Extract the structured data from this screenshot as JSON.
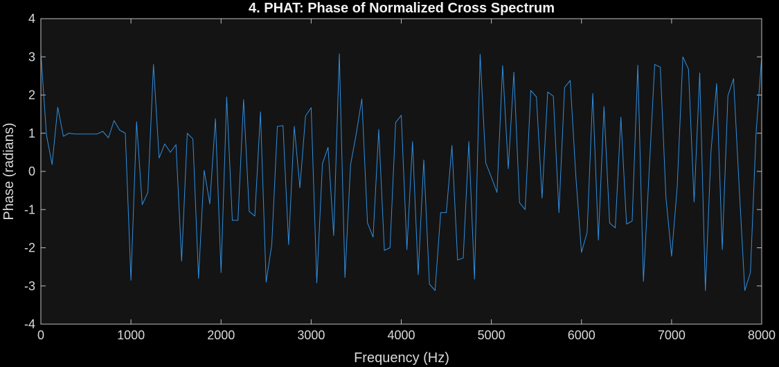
{
  "chart_data": {
    "type": "line",
    "title": "4. PHAT: Phase of Normalized Cross Spectrum",
    "xlabel": "Frequency (Hz)",
    "ylabel": "Phase (radians)",
    "xlim": [
      0,
      8000
    ],
    "ylim": [
      -4,
      4
    ],
    "xticks": [
      0,
      1000,
      2000,
      3000,
      4000,
      5000,
      6000,
      7000,
      8000
    ],
    "yticks": [
      -4,
      -3,
      -2,
      -1,
      0,
      1,
      2,
      3,
      4
    ],
    "grid": false,
    "colors": {
      "figure_background": "#000000",
      "axes_background": "#141414",
      "axes_edge": "#bfbfbf",
      "text": "#d9d9d9",
      "line": "#2f8fe0"
    },
    "series": [
      {
        "x": [
          0,
          62.5,
          125,
          187.5,
          250,
          312.5,
          375,
          437.5,
          500,
          562.5,
          625,
          687.5,
          750,
          812.5,
          875,
          937.5,
          1000,
          1062.5,
          1125,
          1187.5,
          1250,
          1312.5,
          1375,
          1437.5,
          1500,
          1562.5,
          1625,
          1687.5,
          1750,
          1812.5,
          1875,
          1937.5,
          2000,
          2062.5,
          2125,
          2187.5,
          2250,
          2312.5,
          2375,
          2437.5,
          2500,
          2562.5,
          2625,
          2687.5,
          2750,
          2812.5,
          2875,
          2937.5,
          3000,
          3062.5,
          3125,
          3187.5,
          3250,
          3312.5,
          3375,
          3437.5,
          3500,
          3562.5,
          3625,
          3687.5,
          3750,
          3812.5,
          3875,
          3937.5,
          4000,
          4062.5,
          4125,
          4187.5,
          4250,
          4312.5,
          4375,
          4437.5,
          4500,
          4562.5,
          4625,
          4687.5,
          4750,
          4812.5,
          4875,
          4937.5,
          5000,
          5062.5,
          5125,
          5187.5,
          5250,
          5312.5,
          5375,
          5437.5,
          5500,
          5562.5,
          5625,
          5687.5,
          5750,
          5812.5,
          5875,
          5937.5,
          6000,
          6062.5,
          6125,
          6187.5,
          6250,
          6312.5,
          6375,
          6437.5,
          6500,
          6562.5,
          6625,
          6687.5,
          6750,
          6812.5,
          6875,
          6937.5,
          7000,
          7062.5,
          7125,
          7187.5,
          7250,
          7312.5,
          7375,
          7437.5,
          7500,
          7562.5,
          7625,
          7687.5,
          7750,
          7812.5,
          7875,
          7937.5,
          8000
        ],
        "y": [
          3.1,
          0.95,
          0.18,
          1.68,
          0.92,
          1.0,
          0.98,
          0.98,
          0.98,
          0.98,
          0.98,
          1.05,
          0.88,
          1.33,
          1.08,
          1.0,
          -2.85,
          1.3,
          -0.87,
          -0.55,
          2.8,
          0.35,
          0.72,
          0.5,
          0.7,
          -2.35,
          1.0,
          0.85,
          -2.8,
          0.03,
          -0.85,
          1.38,
          -2.65,
          1.95,
          -1.28,
          -1.28,
          1.88,
          -1.05,
          -1.17,
          1.56,
          -2.9,
          -1.92,
          1.18,
          1.2,
          -1.92,
          1.18,
          -0.43,
          1.45,
          1.67,
          -2.92,
          0.2,
          0.63,
          -1.68,
          3.08,
          -2.78,
          0.18,
          0.98,
          1.9,
          -1.35,
          -1.72,
          1.1,
          -2.07,
          -2.0,
          1.28,
          1.47,
          -2.05,
          0.78,
          -2.7,
          0.3,
          -2.95,
          -3.12,
          -1.08,
          -1.08,
          0.68,
          -2.32,
          -2.27,
          0.78,
          -2.82,
          3.07,
          0.22,
          -0.15,
          -0.55,
          2.77,
          0.07,
          2.6,
          -0.82,
          -1.0,
          2.12,
          1.95,
          -0.7,
          2.08,
          1.97,
          -1.08,
          2.2,
          2.38,
          -0.13,
          -2.12,
          -1.6,
          2.04,
          -1.8,
          1.7,
          -1.35,
          -1.48,
          1.42,
          -1.38,
          -1.3,
          2.78,
          -2.88,
          -0.05,
          2.8,
          2.73,
          -0.68,
          -2.22,
          -0.4,
          3.0,
          2.68,
          -0.8,
          2.58,
          -3.12,
          0.52,
          2.3,
          -2.05,
          1.98,
          2.43,
          -0.4,
          -3.12,
          -2.65,
          1.0,
          3.0
        ]
      }
    ]
  }
}
